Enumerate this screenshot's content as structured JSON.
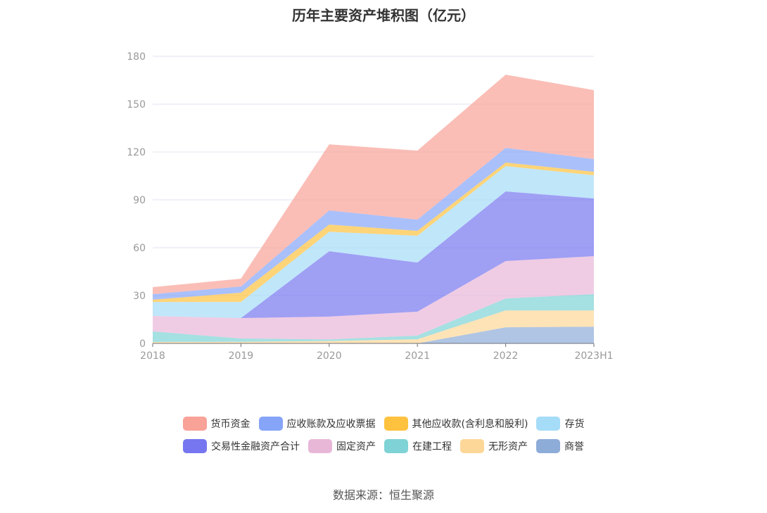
{
  "chart_data": {
    "type": "area",
    "stacked": true,
    "title": "历年主要资产堆积图（亿元）",
    "categories": [
      "2018",
      "2019",
      "2020",
      "2021",
      "2022",
      "2023H1"
    ],
    "ylim": [
      0,
      180
    ],
    "yticks": [
      0,
      30,
      60,
      90,
      120,
      150,
      180
    ],
    "grid": true,
    "legend_position": "bottom",
    "series": [
      {
        "name": "商誉",
        "color": "#8eacd8",
        "values": [
          0,
          0,
          0,
          0,
          10.1,
          10.5
        ]
      },
      {
        "name": "无形资产",
        "color": "#fdd797",
        "values": [
          0.9,
          1.0,
          1.5,
          2.6,
          10.6,
          10.2
        ]
      },
      {
        "name": "在建工程",
        "color": "#7fd3d6",
        "values": [
          6.6,
          2.1,
          1.0,
          2.3,
          7.5,
          10.2
        ]
      },
      {
        "name": "固定资产",
        "color": "#e8b7d8",
        "values": [
          9.7,
          12.8,
          14.3,
          15.0,
          23.4,
          23.8
        ]
      },
      {
        "name": "交易性金融资产合计",
        "color": "#7676f0",
        "values": [
          0,
          0,
          41.0,
          30.8,
          43.7,
          36.2
        ]
      },
      {
        "name": "存货",
        "color": "#a5dcf8",
        "values": [
          8.8,
          10.1,
          12.2,
          16.8,
          15.9,
          14.5
        ]
      },
      {
        "name": "其他应收款(含利息和股利)",
        "color": "#fec23e",
        "values": [
          1.4,
          5.8,
          4.5,
          3.1,
          2.2,
          2.2
        ]
      },
      {
        "name": "应收账款及应收票据",
        "color": "#86a5f8",
        "values": [
          3.5,
          3.9,
          8.9,
          7.0,
          9.2,
          8.0
        ]
      },
      {
        "name": "货币资金",
        "color": "#f8a298",
        "values": [
          4.4,
          4.9,
          41.4,
          43.3,
          45.9,
          43.2
        ]
      }
    ],
    "legend_order": [
      "货币资金",
      "应收账款及应收票据",
      "其他应收款(含利息和股利)",
      "存货",
      "交易性金融资产合计",
      "固定资产",
      "在建工程",
      "无形资产",
      "商誉"
    ]
  },
  "source": "数据来源：恒生聚源"
}
